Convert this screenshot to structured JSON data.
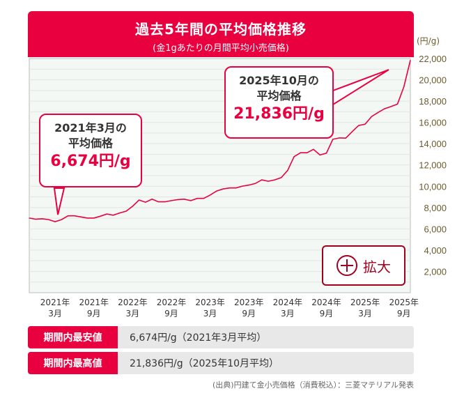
{
  "header": {
    "title": "過去5年間の平均価格推移",
    "subtitle": "(金1gあたりの月間平均小売価格)"
  },
  "chart_data": {
    "type": "line",
    "title": "過去5年間の平均価格推移",
    "subtitle": "(金1gあたりの月間平均小売価格)",
    "ylabel": "(円/g)",
    "ylim": [
      0,
      22000
    ],
    "yticks": [
      "2,000",
      "4,000",
      "6,000",
      "8,000",
      "10,000",
      "12,000",
      "14,000",
      "16,000",
      "18,000",
      "20,000",
      "22,000"
    ],
    "ytick_values": [
      2000,
      4000,
      6000,
      8000,
      10000,
      12000,
      14000,
      16000,
      18000,
      20000,
      22000
    ],
    "x_start": "2020-11",
    "x_end": "2025-10",
    "xticks": [
      {
        "month": "2021-03",
        "year": "2021年",
        "mon": "3月"
      },
      {
        "month": "2021-09",
        "year": "2021年",
        "mon": "9月"
      },
      {
        "month": "2022-03",
        "year": "2022年",
        "mon": "3月"
      },
      {
        "month": "2022-09",
        "year": "2022年",
        "mon": "9月"
      },
      {
        "month": "2023-03",
        "year": "2023年",
        "mon": "3月"
      },
      {
        "month": "2023-09",
        "year": "2023年",
        "mon": "9月"
      },
      {
        "month": "2024-03",
        "year": "2024年",
        "mon": "3月"
      },
      {
        "month": "2024-09",
        "year": "2024年",
        "mon": "9月"
      },
      {
        "month": "2025-03",
        "year": "2025年",
        "mon": "3月"
      },
      {
        "month": "2025-09",
        "year": "2025年",
        "mon": "9月"
      }
    ],
    "values": [
      7010,
      6900,
      6950,
      6870,
      6674,
      6870,
      7220,
      7220,
      7120,
      7010,
      7010,
      7180,
      7390,
      7280,
      7490,
      7660,
      8120,
      8710,
      8500,
      8790,
      8540,
      8540,
      8650,
      8750,
      8790,
      8650,
      8860,
      8860,
      9170,
      9550,
      9740,
      9840,
      9840,
      10010,
      10110,
      10260,
      10600,
      10470,
      10600,
      10810,
      11480,
      12780,
      13150,
      13150,
      13470,
      12940,
      13110,
      14410,
      14540,
      14520,
      15140,
      15710,
      15840,
      16550,
      16930,
      17280,
      17490,
      17720,
      19340,
      21836
    ],
    "line_color": "#e8003f",
    "grid": true,
    "annotations": [
      {
        "month": "2021-03",
        "line1": "2021年3月の",
        "line2": "平均価格",
        "value": "6,674円/g"
      },
      {
        "month": "2025-10",
        "line1": "2025年10月の",
        "line2": "平均価格",
        "value": "21,836円/g"
      }
    ]
  },
  "zoom_button": {
    "label": "拡大",
    "icon": "plus-circle-icon"
  },
  "summary": [
    {
      "label": "期間内最安値",
      "value": "6,674円/g（2021年3月平均）"
    },
    {
      "label": "期間内最高値",
      "value": "21,836円/g（2025年10月平均）"
    }
  ],
  "source": "(出典)円建て金小売価格（消費税込）：三菱マテリアル発表",
  "colors": {
    "accent": "#e8003f",
    "button": "#a0001e",
    "plot_bg": "#f4f8f4"
  }
}
